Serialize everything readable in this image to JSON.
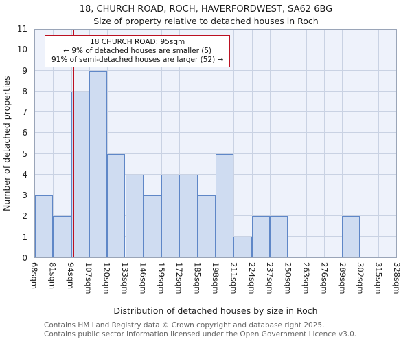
{
  "chart_data": {
    "type": "bar",
    "title": "18, CHURCH ROAD, ROCH, HAVERFORDWEST, SA62 6BG",
    "subtitle": "Size of property relative to detached houses in Roch",
    "xlabel": "Distribution of detached houses by size in Roch",
    "ylabel": "Number of detached properties",
    "categories": [
      "68sqm",
      "81sqm",
      "94sqm",
      "107sqm",
      "120sqm",
      "133sqm",
      "146sqm",
      "159sqm",
      "172sqm",
      "185sqm",
      "198sqm",
      "211sqm",
      "224sqm",
      "237sqm",
      "250sqm",
      "263sqm",
      "276sqm",
      "289sqm",
      "302sqm",
      "315sqm",
      "328sqm"
    ],
    "values": [
      3,
      2,
      8,
      9,
      5,
      4,
      3,
      4,
      4,
      3,
      5,
      1,
      2,
      2,
      0,
      0,
      0,
      2,
      0,
      0
    ],
    "ylim": [
      0,
      11
    ],
    "y_tick_step": 1,
    "grid": true,
    "legend": false,
    "marker": {
      "value": 95,
      "unit": "sqm",
      "color": "#bb1122"
    },
    "annotation": {
      "line1": "18 CHURCH ROAD: 95sqm",
      "line2": "← 9% of detached houses are smaller (5)",
      "line3": "91% of semi-detached houses are larger (52) →",
      "border_color": "#bb1122"
    },
    "colors": {
      "bar_fill": "#cfdcf1",
      "bar_edge": "#5f87c7",
      "plot_bg": "#eef2fb",
      "grid": "#c9d2e3"
    }
  },
  "footer": {
    "line1": "Contains HM Land Registry data © Crown copyright and database right 2025.",
    "line2": "Contains public sector information licensed under the Open Government Licence v3.0."
  }
}
